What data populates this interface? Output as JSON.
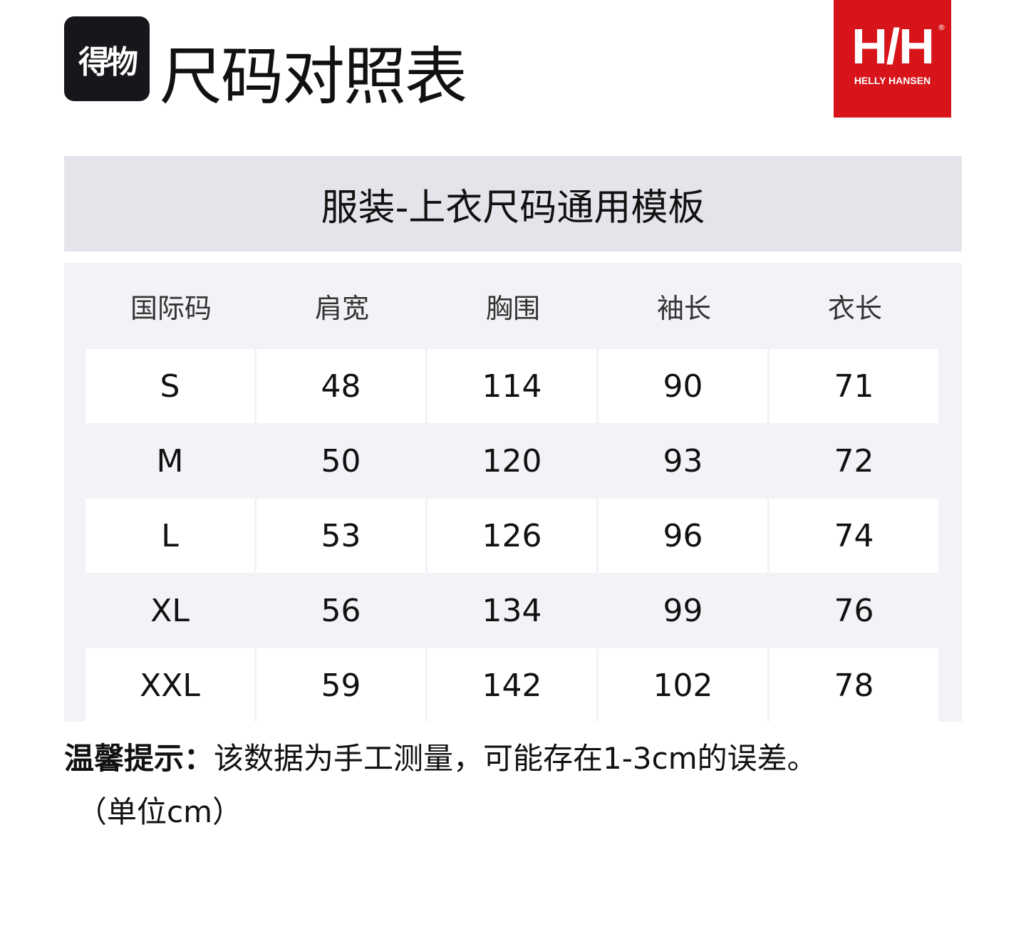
{
  "app_logo_text": "得物",
  "title": "尺码对照表",
  "brand": {
    "name": "HELLY HANSEN",
    "mark": "H/H",
    "color": "#d8141b"
  },
  "template_title": "服装-上衣尺码通用模板",
  "table": {
    "headers": [
      "国际码",
      "肩宽",
      "胸围",
      "袖长",
      "衣长"
    ],
    "rows": [
      [
        "S",
        "48",
        "114",
        "90",
        "71"
      ],
      [
        "M",
        "50",
        "120",
        "93",
        "72"
      ],
      [
        "L",
        "53",
        "126",
        "96",
        "74"
      ],
      [
        "XL",
        "56",
        "134",
        "99",
        "76"
      ],
      [
        "XXL",
        "59",
        "142",
        "102",
        "78"
      ]
    ]
  },
  "note": {
    "label": "温馨提示：",
    "text": "该数据为手工测量，可能存在1-3cm的误差。",
    "unit": "（单位cm）"
  }
}
